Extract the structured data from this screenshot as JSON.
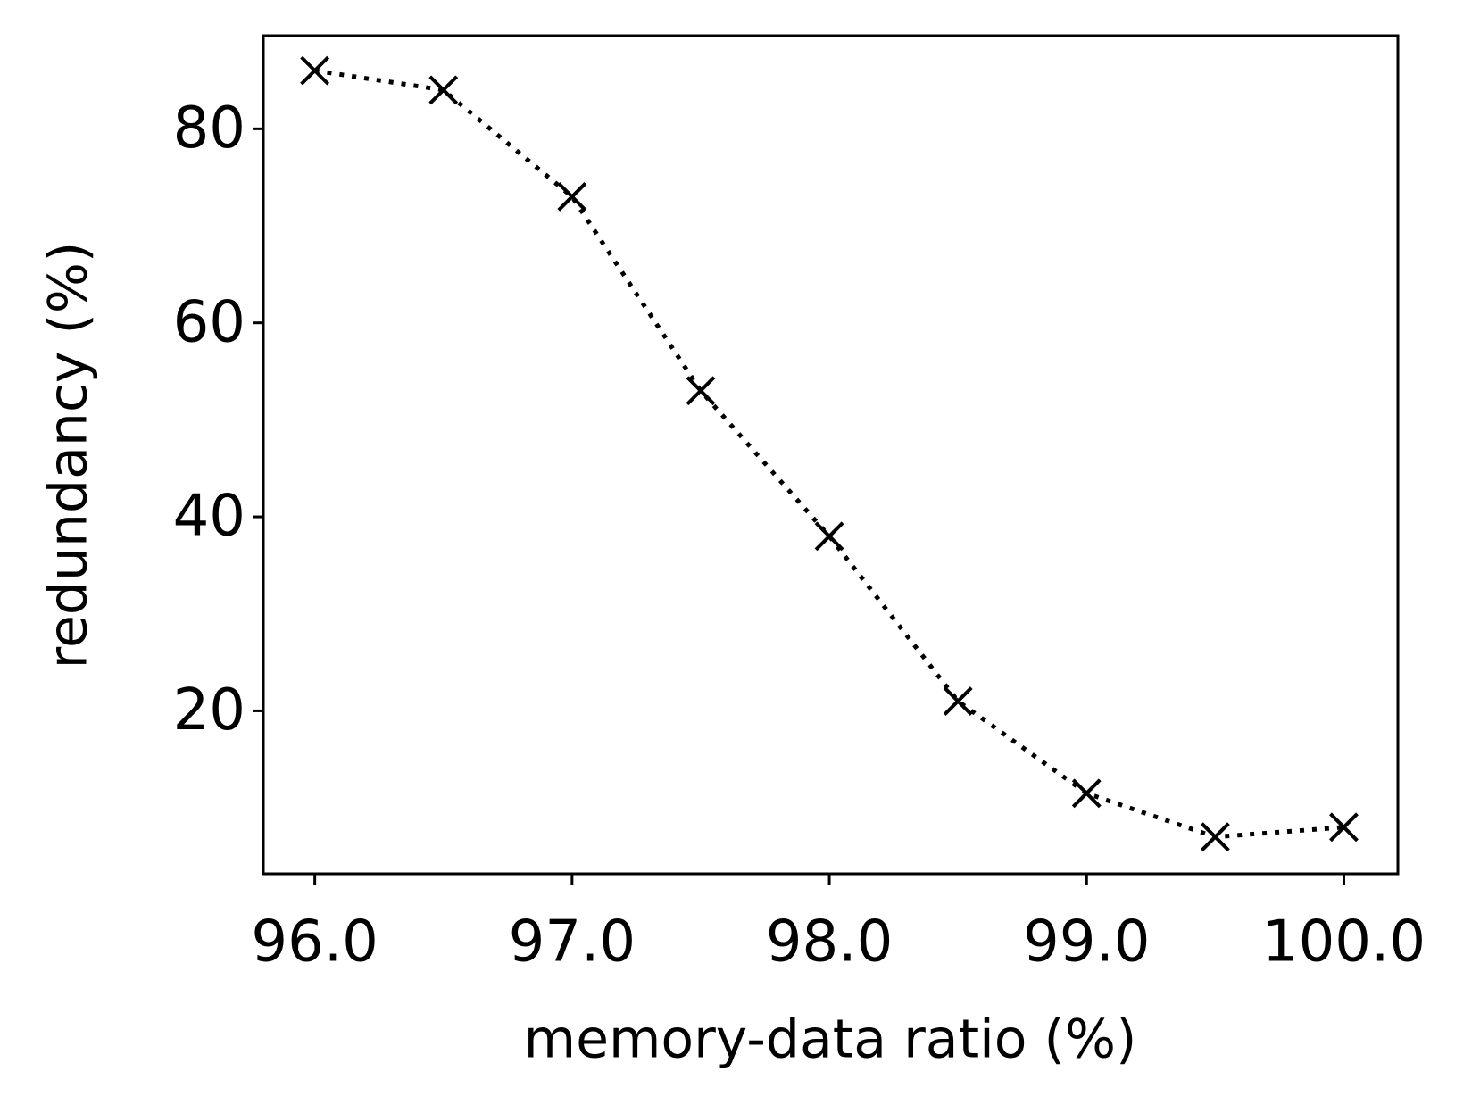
{
  "chart_data": {
    "type": "line",
    "x_label": "memory-data ratio (%)",
    "y_label": "redundancy (%)",
    "x": [
      96.0,
      96.5,
      97.0,
      97.5,
      98.0,
      98.5,
      99.0,
      99.5,
      100.0
    ],
    "series": [
      {
        "color": "#000000",
        "values": [
          86,
          84,
          73,
          53,
          38,
          21,
          11.5,
          7,
          8
        ]
      }
    ],
    "xlim": [
      95.8,
      100.21
    ],
    "ylim": [
      3.2,
      89.6
    ],
    "xticks": [
      {
        "value": 96.0,
        "label": "96.0"
      },
      {
        "value": 97.0,
        "label": "97.0"
      },
      {
        "value": 98.0,
        "label": "98.0"
      },
      {
        "value": 99.0,
        "label": "99.0"
      },
      {
        "value": 100.0,
        "label": "100.0"
      }
    ],
    "yticks": [
      20,
      40,
      60,
      80
    ],
    "grid": false
  }
}
